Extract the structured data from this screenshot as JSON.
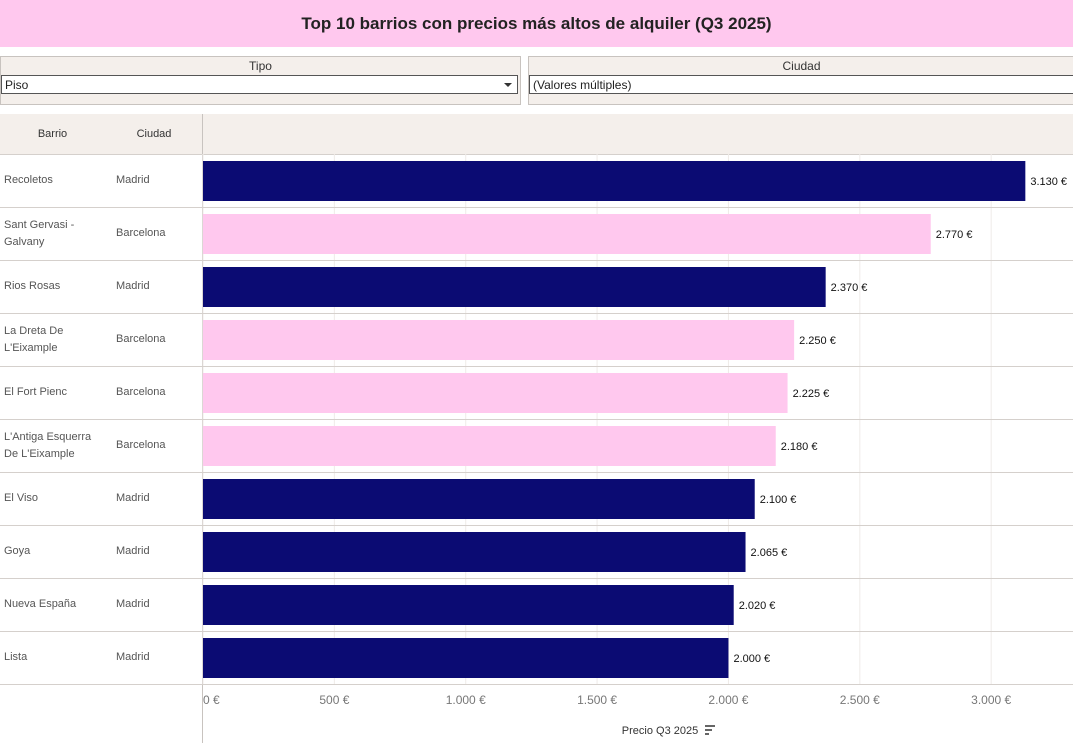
{
  "title": "Top 10 barrios con precios más altos de alquiler (Q3 2025)",
  "filters": [
    {
      "label": "Tipo",
      "value": "Piso"
    },
    {
      "label": "Ciudad",
      "value": "(Valores múltiples)"
    }
  ],
  "chart_data": {
    "type": "bar",
    "orientation": "horizontal",
    "column_headers": [
      "Barrio",
      "Ciudad"
    ],
    "categories": [
      "Recoletos",
      "Sant Gervasi - Galvany",
      "Rios Rosas",
      "La Dreta De L'Eixample",
      "El Fort Pienc",
      "L'Antiga Esquerra De L'Eixample",
      "El Viso",
      "Goya",
      "Nueva España",
      "Lista"
    ],
    "cities": [
      "Madrid",
      "Barcelona",
      "Madrid",
      "Barcelona",
      "Barcelona",
      "Barcelona",
      "Madrid",
      "Madrid",
      "Madrid",
      "Madrid"
    ],
    "values": [
      3130,
      2770,
      2370,
      2250,
      2225,
      2180,
      2100,
      2065,
      2020,
      2000
    ],
    "value_labels": [
      "3.130 €",
      "2.770 €",
      "2.370 €",
      "2.250 €",
      "2.225 €",
      "2.180 €",
      "2.100 €",
      "2.065 €",
      "2.020 €",
      "2.000 €"
    ],
    "colors": [
      "#0b0b73",
      "#ffc8ee",
      "#0b0b73",
      "#ffc8ee",
      "#ffc8ee",
      "#ffc8ee",
      "#0b0b73",
      "#0b0b73",
      "#0b0b73",
      "#0b0b73"
    ],
    "x_label": "Precio Q3 2025",
    "xlim": [
      0,
      3300
    ],
    "xticks": [
      {
        "value": 0,
        "label": "0 €"
      },
      {
        "value": 500,
        "label": "500 €"
      },
      {
        "value": 1000,
        "label": "1.000 €"
      },
      {
        "value": 1500,
        "label": "1.500 €"
      },
      {
        "value": 2000,
        "label": "2.000 €"
      },
      {
        "value": 2500,
        "label": "2.500 €"
      },
      {
        "value": 3000,
        "label": "3.000 €"
      }
    ],
    "grid": true
  }
}
